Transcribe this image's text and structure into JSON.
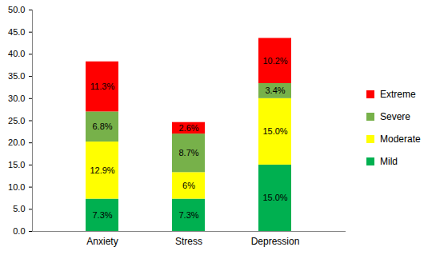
{
  "chart_data": {
    "type": "bar",
    "stacked": true,
    "data_labels": true,
    "legend": "right",
    "grid": false,
    "categories": [
      "Anxiety",
      "Stress",
      "Depression"
    ],
    "series": [
      {
        "name": "Mild",
        "color": "#00B050",
        "values": [
          7.3,
          7.3,
          15.0
        ],
        "value_labels": [
          "7.3%",
          "7.3%",
          "15.0%"
        ]
      },
      {
        "name": "Moderate",
        "color": "#FFFF00",
        "values": [
          12.9,
          6,
          15.0
        ],
        "value_labels": [
          "12.9%",
          "6%",
          "15.0%"
        ]
      },
      {
        "name": "Severe",
        "color": "#77B14A",
        "values": [
          6.8,
          8.7,
          3.4
        ],
        "value_labels": [
          "6.8%",
          "8.7%",
          "3.4%"
        ]
      },
      {
        "name": "Extreme",
        "color": "#FF0000",
        "values": [
          11.3,
          2.6,
          10.2
        ],
        "value_labels": [
          "11.3%",
          "2.6%",
          "10.2%"
        ]
      }
    ],
    "ylim": [
      0,
      50
    ],
    "yticks": [
      {
        "value": 0,
        "label": "0.0"
      },
      {
        "value": 5,
        "label": "5.0"
      },
      {
        "value": 10,
        "label": "10.0"
      },
      {
        "value": 15,
        "label": "15.0"
      },
      {
        "value": 20,
        "label": "20.0"
      },
      {
        "value": 25,
        "label": "25.0"
      },
      {
        "value": 30,
        "label": "30.0"
      },
      {
        "value": 35,
        "label": "35.0"
      },
      {
        "value": 40,
        "label": "40.0"
      },
      {
        "value": 45,
        "label": "45.0"
      },
      {
        "value": 50,
        "label": "50.0"
      }
    ]
  }
}
